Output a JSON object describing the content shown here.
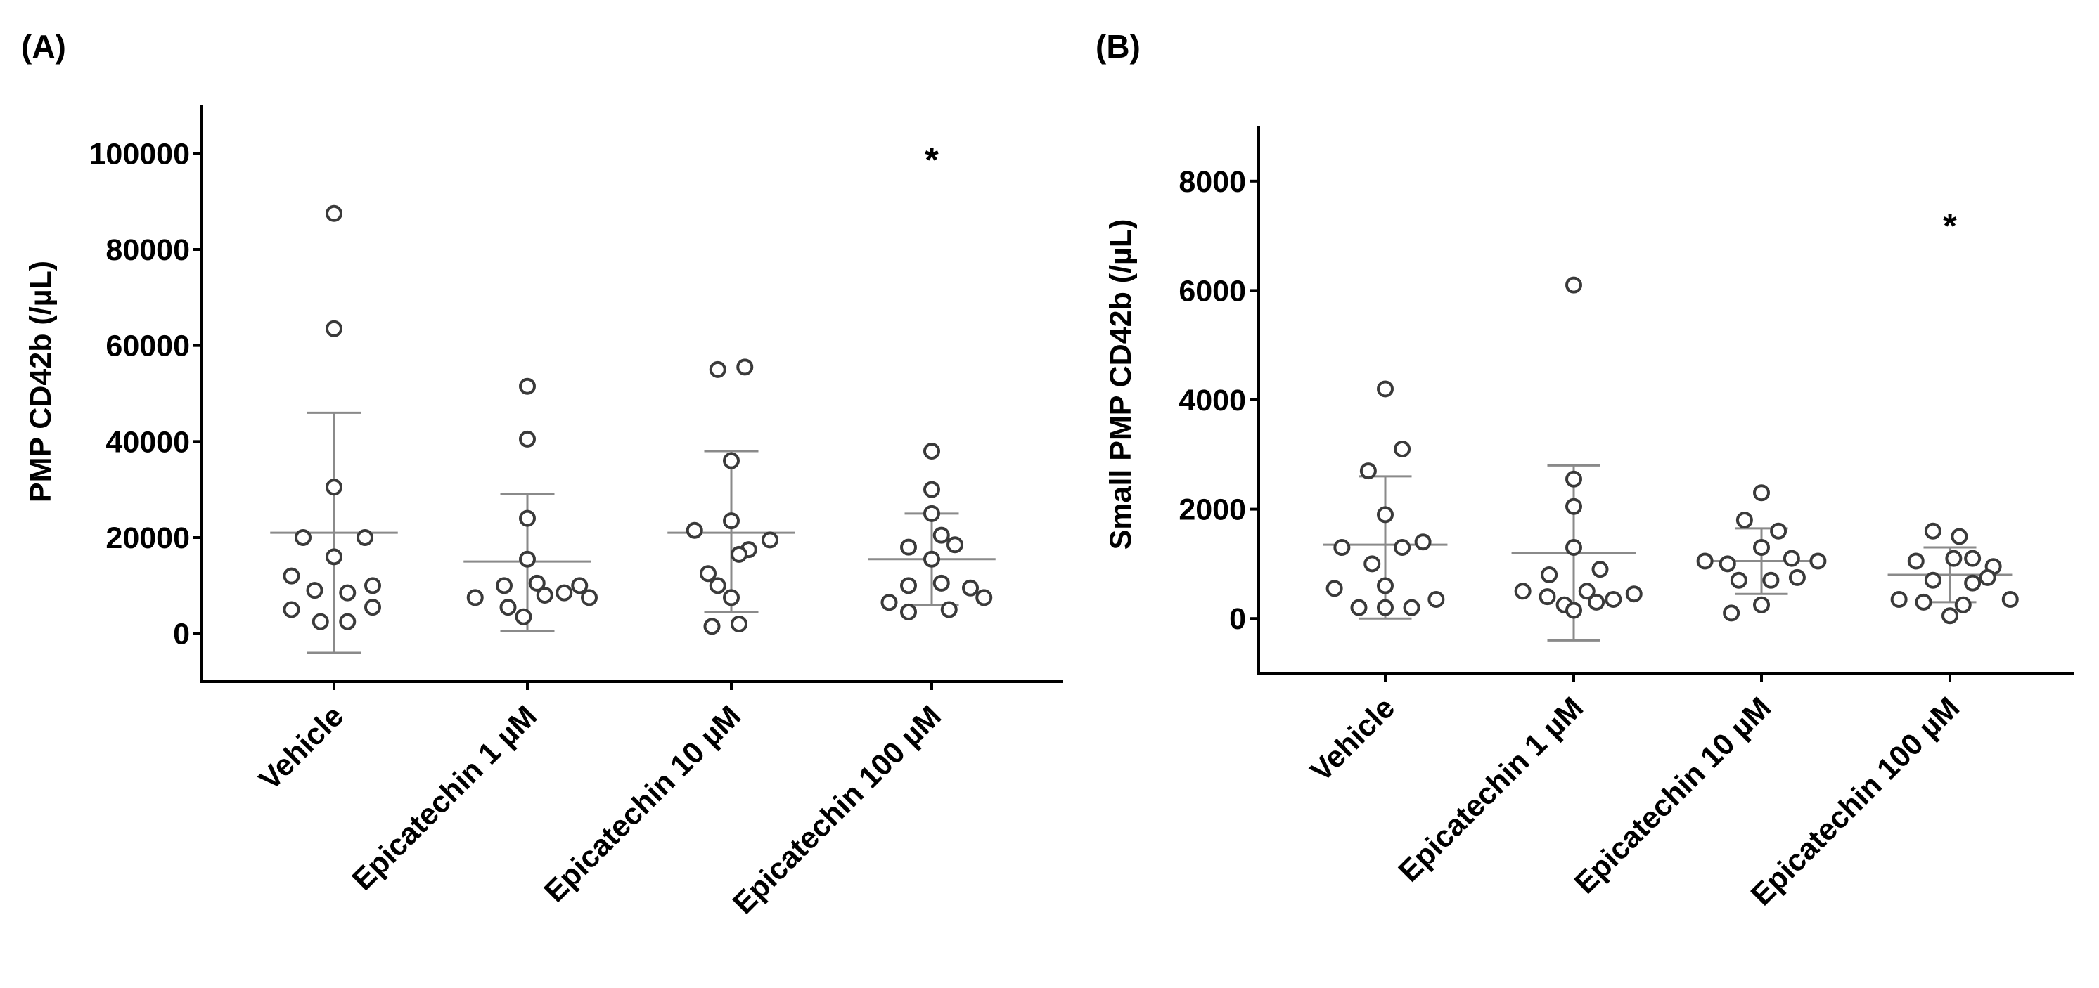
{
  "chart_data": [
    {
      "panel_label": "(A)",
      "type": "scatter",
      "ylabel": "PMP CD42b (/µL)",
      "ylim": [
        -10000,
        110000
      ],
      "yticks": [
        0,
        20000,
        40000,
        60000,
        80000,
        100000
      ],
      "ytick_labels": [
        "0",
        "20000",
        "40000",
        "60000",
        "80000",
        "100000"
      ],
      "categories": [
        "Vehicle",
        "Epicatechin 1 µM",
        "Epicatechin 10 µM",
        "Epicatechin 100 µM"
      ],
      "annotations": [
        {
          "group": 3,
          "text": "*",
          "y": 100000
        }
      ],
      "groups": [
        {
          "name": "Vehicle",
          "mean": 21000,
          "sd_low": -4000,
          "sd_high": 46000,
          "points": [
            {
              "x": 0,
              "y": 87500
            },
            {
              "x": 0,
              "y": 63500
            },
            {
              "x": 0,
              "y": 30500
            },
            {
              "x": -0.16,
              "y": 20000
            },
            {
              "x": 0.16,
              "y": 20000
            },
            {
              "x": 0,
              "y": 16000
            },
            {
              "x": -0.22,
              "y": 12000
            },
            {
              "x": -0.1,
              "y": 9000
            },
            {
              "x": 0.07,
              "y": 8500
            },
            {
              "x": 0.2,
              "y": 10000
            },
            {
              "x": -0.22,
              "y": 5000
            },
            {
              "x": 0.2,
              "y": 5500
            },
            {
              "x": -0.07,
              "y": 2500
            },
            {
              "x": 0.07,
              "y": 2500
            }
          ]
        },
        {
          "name": "Epicatechin 1 µM",
          "mean": 15000,
          "sd_low": 500,
          "sd_high": 29000,
          "points": [
            {
              "x": 0,
              "y": 51500
            },
            {
              "x": 0,
              "y": 40500
            },
            {
              "x": 0,
              "y": 24000
            },
            {
              "x": 0,
              "y": 15500
            },
            {
              "x": -0.12,
              "y": 10000
            },
            {
              "x": 0.05,
              "y": 10500
            },
            {
              "x": 0.27,
              "y": 10000
            },
            {
              "x": -0.27,
              "y": 7500
            },
            {
              "x": 0.09,
              "y": 8000
            },
            {
              "x": 0.19,
              "y": 8500
            },
            {
              "x": 0.32,
              "y": 7500
            },
            {
              "x": -0.1,
              "y": 5500
            },
            {
              "x": -0.02,
              "y": 3500
            }
          ]
        },
        {
          "name": "Epicatechin 10 µM",
          "mean": 21000,
          "sd_low": 4500,
          "sd_high": 38000,
          "points": [
            {
              "x": -0.07,
              "y": 55000
            },
            {
              "x": 0.07,
              "y": 55500
            },
            {
              "x": 0,
              "y": 36000
            },
            {
              "x": 0,
              "y": 23500
            },
            {
              "x": -0.19,
              "y": 21500
            },
            {
              "x": 0.2,
              "y": 19500
            },
            {
              "x": 0.09,
              "y": 17500
            },
            {
              "x": -0.12,
              "y": 12500
            },
            {
              "x": 0.04,
              "y": 16500
            },
            {
              "x": -0.07,
              "y": 10000
            },
            {
              "x": 0,
              "y": 7500
            },
            {
              "x": -0.1,
              "y": 1500
            },
            {
              "x": 0.04,
              "y": 2000
            }
          ]
        },
        {
          "name": "Epicatechin 100 µM",
          "mean": 15500,
          "sd_low": 6000,
          "sd_high": 25000,
          "points": [
            {
              "x": 0,
              "y": 38000
            },
            {
              "x": 0,
              "y": 30000
            },
            {
              "x": 0,
              "y": 25000
            },
            {
              "x": -0.12,
              "y": 18000
            },
            {
              "x": 0.05,
              "y": 20500
            },
            {
              "x": 0.12,
              "y": 18500
            },
            {
              "x": 0,
              "y": 15500
            },
            {
              "x": -0.12,
              "y": 10000
            },
            {
              "x": 0.05,
              "y": 10500
            },
            {
              "x": 0.2,
              "y": 9500
            },
            {
              "x": -0.22,
              "y": 6500
            },
            {
              "x": 0.27,
              "y": 7500
            },
            {
              "x": -0.12,
              "y": 4500
            },
            {
              "x": 0.09,
              "y": 5000
            }
          ]
        }
      ]
    },
    {
      "panel_label": "(B)",
      "type": "scatter",
      "ylabel": "Small PMP CD42b (/µL)",
      "ylim": [
        -1000,
        9000
      ],
      "yticks": [
        0,
        2000,
        4000,
        6000,
        8000
      ],
      "ytick_labels": [
        "0",
        "2000",
        "4000",
        "6000",
        "8000"
      ],
      "categories": [
        "Vehicle",
        "Epicatechin 1 µM",
        "Epicatechin 10 µM",
        "Epicatechin 100 µM"
      ],
      "annotations": [
        {
          "group": 3,
          "text": "*",
          "y": 7300
        }
      ],
      "groups": [
        {
          "name": "Vehicle",
          "mean": 1350,
          "sd_low": 0,
          "sd_high": 2600,
          "points": [
            {
              "x": 0,
              "y": 4200
            },
            {
              "x": 0.09,
              "y": 3100
            },
            {
              "x": -0.09,
              "y": 2700
            },
            {
              "x": 0,
              "y": 1900
            },
            {
              "x": -0.23,
              "y": 1300
            },
            {
              "x": 0.09,
              "y": 1300
            },
            {
              "x": 0.2,
              "y": 1400
            },
            {
              "x": -0.07,
              "y": 1000
            },
            {
              "x": 0,
              "y": 600
            },
            {
              "x": -0.27,
              "y": 550
            },
            {
              "x": -0.14,
              "y": 200
            },
            {
              "x": 0,
              "y": 200
            },
            {
              "x": 0.14,
              "y": 200
            },
            {
              "x": 0.27,
              "y": 350
            }
          ]
        },
        {
          "name": "Epicatechin 1 µM",
          "mean": 1200,
          "sd_low": -400,
          "sd_high": 2800,
          "points": [
            {
              "x": 0,
              "y": 6100
            },
            {
              "x": 0,
              "y": 2550
            },
            {
              "x": 0,
              "y": 2050
            },
            {
              "x": 0,
              "y": 1300
            },
            {
              "x": -0.13,
              "y": 800
            },
            {
              "x": 0.14,
              "y": 900
            },
            {
              "x": -0.27,
              "y": 500
            },
            {
              "x": -0.14,
              "y": 400
            },
            {
              "x": 0.07,
              "y": 500
            },
            {
              "x": 0.32,
              "y": 450
            },
            {
              "x": -0.05,
              "y": 250
            },
            {
              "x": 0.12,
              "y": 300
            },
            {
              "x": 0.21,
              "y": 350
            },
            {
              "x": 0,
              "y": 150
            }
          ]
        },
        {
          "name": "Epicatechin 10 µM",
          "mean": 1050,
          "sd_low": 450,
          "sd_high": 1650,
          "points": [
            {
              "x": 0,
              "y": 2300
            },
            {
              "x": -0.09,
              "y": 1800
            },
            {
              "x": 0.09,
              "y": 1600
            },
            {
              "x": -0.3,
              "y": 1050
            },
            {
              "x": -0.18,
              "y": 1000
            },
            {
              "x": 0,
              "y": 1300
            },
            {
              "x": 0.16,
              "y": 1100
            },
            {
              "x": 0.3,
              "y": 1050
            },
            {
              "x": -0.12,
              "y": 700
            },
            {
              "x": 0.05,
              "y": 700
            },
            {
              "x": 0.19,
              "y": 750
            },
            {
              "x": -0.16,
              "y": 100
            },
            {
              "x": 0,
              "y": 250
            }
          ]
        },
        {
          "name": "Epicatechin 100 µM",
          "mean": 800,
          "sd_low": 300,
          "sd_high": 1300,
          "points": [
            {
              "x": -0.09,
              "y": 1600
            },
            {
              "x": 0.05,
              "y": 1500
            },
            {
              "x": -0.18,
              "y": 1050
            },
            {
              "x": 0.02,
              "y": 1100
            },
            {
              "x": 0.12,
              "y": 1100
            },
            {
              "x": 0.23,
              "y": 950
            },
            {
              "x": -0.09,
              "y": 700
            },
            {
              "x": 0.12,
              "y": 650
            },
            {
              "x": 0.2,
              "y": 750
            },
            {
              "x": -0.27,
              "y": 350
            },
            {
              "x": -0.14,
              "y": 300
            },
            {
              "x": 0.07,
              "y": 250
            },
            {
              "x": 0.32,
              "y": 350
            },
            {
              "x": 0,
              "y": 50
            }
          ]
        }
      ]
    }
  ]
}
